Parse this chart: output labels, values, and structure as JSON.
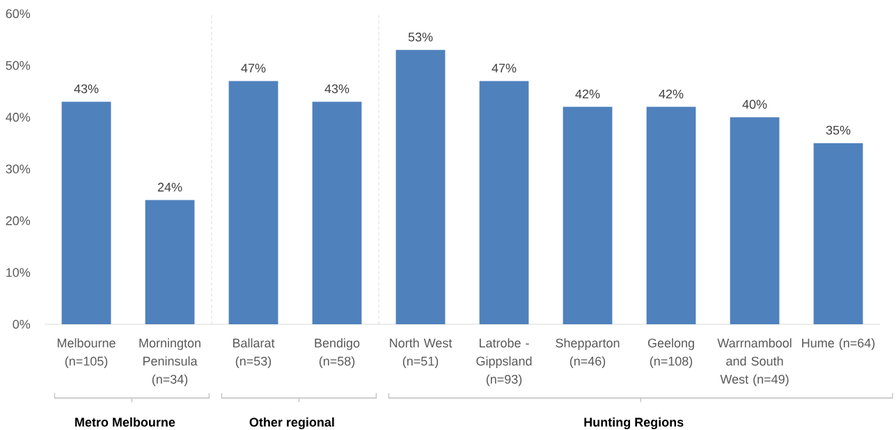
{
  "chart_data": {
    "type": "bar",
    "categories": [
      "Melbourne (n=105)",
      "Mornington Peninsula (n=34)",
      "Ballarat (n=53)",
      "Bendigo (n=58)",
      "North West (n=51)",
      "Latrobe - Gippsland (n=93)",
      "Shepparton (n=46)",
      "Geelong (n=108)",
      "Warrnambool and South West (n=49)",
      "Hume (n=64)"
    ],
    "values": [
      43,
      24,
      47,
      43,
      53,
      47,
      42,
      42,
      40,
      35
    ],
    "value_labels": [
      "43%",
      "24%",
      "47%",
      "43%",
      "53%",
      "47%",
      "42%",
      "42%",
      "40%",
      "35%"
    ],
    "color": "#4f81bd",
    "ylim": [
      0,
      60
    ],
    "yticks": [
      {
        "value": 0,
        "label": "0%"
      },
      {
        "value": 10,
        "label": "10%"
      },
      {
        "value": 20,
        "label": "20%"
      },
      {
        "value": 30,
        "label": "30%"
      },
      {
        "value": 40,
        "label": "40%"
      },
      {
        "value": 50,
        "label": "50%"
      },
      {
        "value": 60,
        "label": "60%"
      }
    ],
    "annotations": [
      "Metro Melbourne",
      "Other regional",
      "Hunting Regions"
    ]
  }
}
